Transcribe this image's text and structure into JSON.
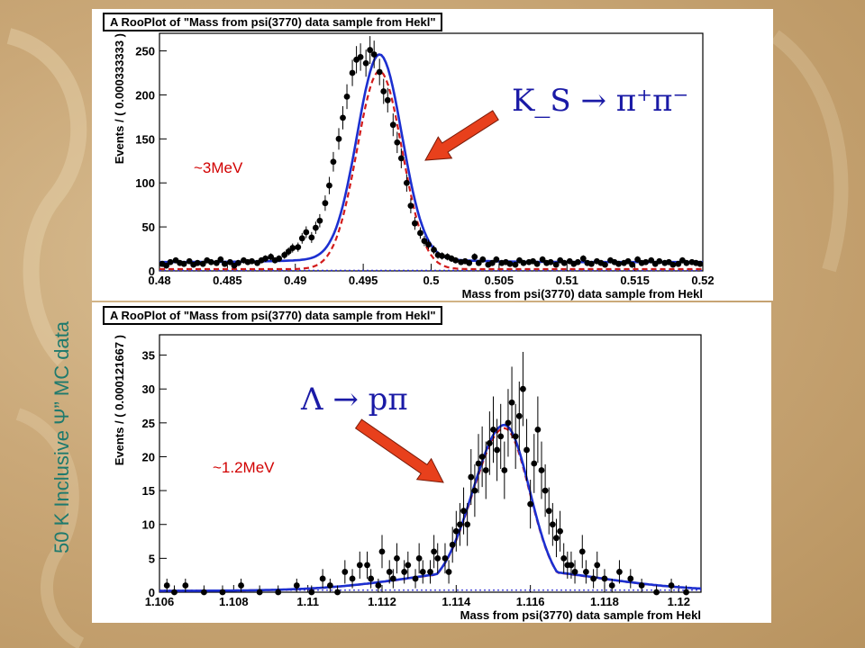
{
  "side_title": "50 K Inclusive Ψ” MC data",
  "chart_data": [
    {
      "type": "scatter",
      "title": "A RooPlot of \"Mass from psi(3770) data sample from Hekl\"",
      "xlabel": "Mass from psi(3770) data sample from Hekl",
      "ylabel": "Events / ( 0.000333333 )",
      "xlim": [
        0.48,
        0.52
      ],
      "ylim": [
        0,
        270
      ],
      "xticks": [
        "0.48",
        "0.485",
        "0.49",
        "0.495",
        "0.5",
        "0.505",
        "0.51",
        "0.515",
        "0.52"
      ],
      "xtick_values": [
        0.48,
        0.485,
        0.49,
        0.495,
        0.5,
        0.505,
        0.51,
        0.515,
        0.52
      ],
      "yticks": [
        "0",
        "50",
        "100",
        "150",
        "200",
        "250"
      ],
      "ytick_values": [
        0,
        50,
        100,
        150,
        200,
        250
      ],
      "annotation": "~3MeV",
      "formula": "K_S → π⁺π⁻",
      "fit": {
        "mean": 0.4962,
        "sigma": 0.00165,
        "amplitude": 232,
        "background": 10
      },
      "colors": {
        "fit_total": "#1c2fd0",
        "fit_component": "#d21b1b",
        "background": "#2a2ad8",
        "points": "#000000",
        "arrow": "#e8401c"
      },
      "series": [
        {
          "x": [
            0.4802,
            0.4805,
            0.4808,
            0.4812,
            0.4815,
            0.4818,
            0.4822,
            0.4825,
            0.4828,
            0.4832,
            0.4835,
            0.4838,
            0.4842,
            0.4845,
            0.4848,
            0.4852,
            0.4855,
            0.4858,
            0.4862,
            0.4865,
            0.4868,
            0.4872,
            0.4875,
            0.4878,
            0.4882,
            0.4885,
            0.4888,
            0.4892,
            0.4895,
            0.4898,
            0.4902,
            0.4905,
            0.4908,
            0.4912,
            0.4915,
            0.4918,
            0.4922,
            0.4925,
            0.4928,
            0.4932,
            0.4935,
            0.4938,
            0.4942,
            0.4945,
            0.4948,
            0.4952,
            0.4955,
            0.4958,
            0.4962,
            0.4965,
            0.4968,
            0.4972,
            0.4975,
            0.4978,
            0.4982,
            0.4985,
            0.4988,
            0.4992,
            0.4995,
            0.4998,
            0.5002,
            0.5005,
            0.5008,
            0.5012,
            0.5015,
            0.5018,
            0.5022,
            0.5025,
            0.5028,
            0.5032,
            0.5035,
            0.5038,
            0.5042,
            0.5045,
            0.5048,
            0.5052,
            0.5055,
            0.5058,
            0.5062,
            0.5065,
            0.5068,
            0.5072,
            0.5075,
            0.5078,
            0.5082,
            0.5085,
            0.5088,
            0.5092,
            0.5095,
            0.5098,
            0.5102,
            0.5105,
            0.5108,
            0.5112,
            0.5115,
            0.5118,
            0.5122,
            0.5125,
            0.5128,
            0.5132,
            0.5135,
            0.5138,
            0.5142,
            0.5145,
            0.5148,
            0.5152,
            0.5155,
            0.5158,
            0.5162,
            0.5165,
            0.5168,
            0.5172,
            0.5175,
            0.5178,
            0.5182,
            0.5185,
            0.5188,
            0.5192,
            0.5195,
            0.5198
          ],
          "y": [
            8,
            6,
            10,
            12,
            9,
            8,
            11,
            7,
            9,
            8,
            12,
            10,
            9,
            13,
            8,
            10,
            6,
            9,
            12,
            10,
            11,
            9,
            12,
            14,
            16,
            12,
            14,
            18,
            22,
            26,
            27,
            37,
            44,
            38,
            49,
            57,
            77,
            97,
            124,
            150,
            174,
            198,
            225,
            240,
            243,
            236,
            251,
            246,
            226,
            204,
            194,
            166,
            146,
            128,
            100,
            74,
            54,
            43,
            34,
            30,
            24,
            18,
            17,
            16,
            14,
            12,
            10,
            11,
            9,
            16,
            9,
            13,
            7,
            9,
            13,
            9,
            10,
            8,
            7,
            12,
            9,
            10,
            11,
            8,
            13,
            9,
            10,
            7,
            12,
            9,
            11,
            8,
            10,
            14,
            9,
            8,
            11,
            9,
            7,
            12,
            10,
            8,
            9,
            11,
            7,
            13,
            9,
            10,
            12,
            8,
            11,
            9,
            10,
            7,
            8,
            12,
            9,
            10,
            9,
            8
          ]
        }
      ]
    },
    {
      "type": "scatter",
      "title": "A RooPlot of \"Mass from psi(3770) data sample from Hekl\"",
      "xlabel": "Mass from psi(3770) data sample from Hekl",
      "ylabel": "Events / ( 0.000121667 )",
      "xlim": [
        1.106,
        1.1206
      ],
      "ylim": [
        0,
        38
      ],
      "xticks": [
        "1.106",
        "1.108",
        "1.11",
        "1.112",
        "1.114",
        "1.116",
        "1.118",
        "1.12"
      ],
      "xtick_values": [
        1.106,
        1.108,
        1.11,
        1.112,
        1.114,
        1.116,
        1.118,
        1.12
      ],
      "yticks": [
        "0",
        "5",
        "10",
        "15",
        "20",
        "25",
        "30",
        "35"
      ],
      "ytick_values": [
        0,
        5,
        10,
        15,
        20,
        25,
        30,
        35
      ],
      "annotation": "~1.2MeV",
      "formula": "Λ → pπ",
      "fit": {
        "mean": 1.1153,
        "sigma_left": 0.00085,
        "sigma_right": 0.00068,
        "amplitude": 24.5,
        "tail_amp": 3.2,
        "tail_sigma": 0.0025
      },
      "colors": {
        "fit_total": "#1c2fd0",
        "fit_component": "#d21b1b",
        "points": "#000000",
        "arrow": "#e8401c"
      },
      "series": [
        {
          "x": [
            1.1062,
            1.1064,
            1.1067,
            1.1072,
            1.1077,
            1.1082,
            1.1087,
            1.1092,
            1.1097,
            1.1101,
            1.1104,
            1.1106,
            1.1108,
            1.111,
            1.1112,
            1.1114,
            1.1116,
            1.1117,
            1.1119,
            1.112,
            1.1122,
            1.1123,
            1.1124,
            1.1126,
            1.1127,
            1.1129,
            1.113,
            1.1131,
            1.1133,
            1.1134,
            1.1135,
            1.1137,
            1.1138,
            1.1139,
            1.114,
            1.1141,
            1.1142,
            1.1143,
            1.1144,
            1.1145,
            1.1146,
            1.1147,
            1.1148,
            1.1149,
            1.115,
            1.1151,
            1.1152,
            1.1153,
            1.1154,
            1.1155,
            1.1156,
            1.1157,
            1.1158,
            1.1159,
            1.116,
            1.1161,
            1.1162,
            1.1163,
            1.1164,
            1.1165,
            1.1166,
            1.1167,
            1.1168,
            1.1169,
            1.117,
            1.1171,
            1.1172,
            1.1174,
            1.1175,
            1.1177,
            1.1178,
            1.118,
            1.1182,
            1.1184,
            1.1187,
            1.119,
            1.1194,
            1.1198,
            1.1202
          ],
          "y": [
            1,
            0,
            1,
            0,
            0,
            1,
            0,
            0,
            1,
            0,
            2,
            1,
            0,
            3,
            2,
            4,
            4,
            2,
            1,
            6,
            3,
            2,
            5,
            3,
            4,
            2,
            5,
            3,
            3,
            6,
            5,
            5,
            3,
            7,
            9,
            10,
            12,
            10,
            17,
            15,
            19,
            20,
            18,
            22,
            24,
            21,
            23,
            18,
            25,
            28,
            23,
            26,
            30,
            21,
            13,
            19,
            24,
            18,
            15,
            12,
            10,
            8,
            9,
            5,
            4,
            4,
            3,
            6,
            3,
            2,
            4,
            2,
            1,
            3,
            2,
            1,
            0,
            1,
            0
          ]
        }
      ]
    }
  ]
}
